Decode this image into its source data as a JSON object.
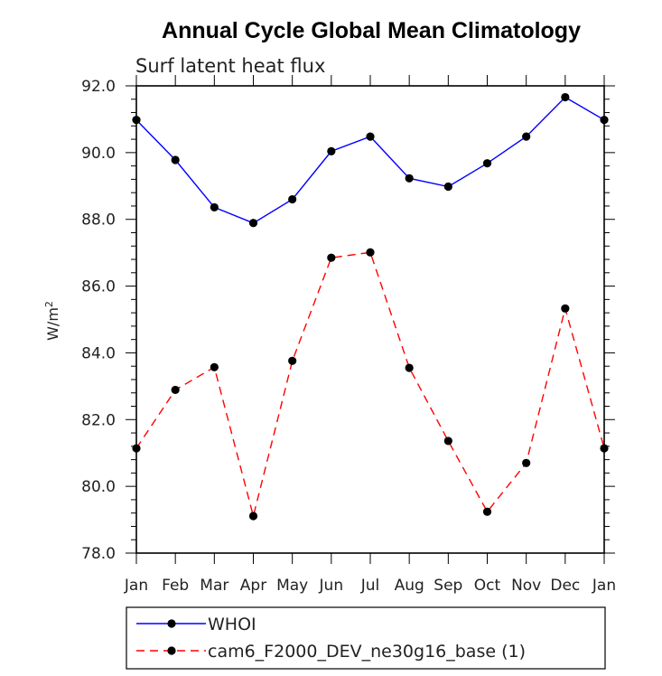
{
  "chart_data": {
    "type": "line",
    "title": "Annual Cycle Global Mean Climatology",
    "subtitle": "Surf latent heat flux",
    "ylabel_base": "W/m",
    "ylabel_sup": "2",
    "categories": [
      "Jan",
      "Feb",
      "Mar",
      "Apr",
      "May",
      "Jun",
      "Jul",
      "Aug",
      "Sep",
      "Oct",
      "Nov",
      "Dec",
      "Jan"
    ],
    "ylim": [
      78.0,
      92.0
    ],
    "yticks": [
      "78.0",
      "80.0",
      "82.0",
      "84.0",
      "86.0",
      "88.0",
      "90.0",
      "92.0"
    ],
    "series": [
      {
        "name": "WHOI",
        "color": "#0000ff",
        "dashed": false,
        "values": [
          90.98,
          89.78,
          88.36,
          87.89,
          88.6,
          90.04,
          90.48,
          89.23,
          88.98,
          89.68,
          90.48,
          91.66,
          90.98
        ]
      },
      {
        "name": "cam6_F2000_DEV_ne30g16_base (1)",
        "color": "#ff0000",
        "dashed": true,
        "values": [
          81.14,
          82.89,
          83.57,
          79.11,
          83.76,
          86.85,
          87.01,
          83.55,
          81.36,
          79.24,
          80.7,
          85.33,
          81.14
        ]
      }
    ]
  }
}
